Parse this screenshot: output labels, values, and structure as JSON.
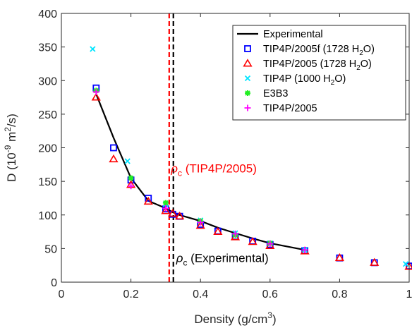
{
  "chart_data": {
    "type": "scatter",
    "xlabel": "Density (g/cm3)",
    "ylabel": "D (10-9 m2/s)",
    "xlim": [
      0,
      1
    ],
    "ylim": [
      0,
      400
    ],
    "xticks": [
      0,
      0.2,
      0.4,
      0.6,
      0.8,
      1
    ],
    "yticks": [
      0,
      50,
      100,
      150,
      200,
      250,
      300,
      350,
      400
    ],
    "xtick_labels": [
      "0",
      "0.2",
      "0.4",
      "0.6",
      "0.8",
      "1"
    ],
    "ytick_labels": [
      "0",
      "50",
      "100",
      "150",
      "200",
      "250",
      "300",
      "350",
      "400"
    ],
    "grid": false,
    "legend_position": "top-right",
    "series": [
      {
        "name": "Experimental",
        "kind": "line",
        "color": "#000000",
        "x": [
          0.1,
          0.15,
          0.2,
          0.25,
          0.3,
          0.32,
          0.34,
          0.4,
          0.45,
          0.5,
          0.55,
          0.6,
          0.7
        ],
        "y": [
          280,
          215,
          155,
          121,
          110,
          104,
          100,
          91,
          81,
          73,
          65,
          58,
          48
        ]
      },
      {
        "name": "TIP4P/2005f (1728 H2O)",
        "marker": "square",
        "color": "#0000ff",
        "x": [
          0.1,
          0.15,
          0.2,
          0.25,
          0.3,
          0.32,
          0.34,
          0.4,
          0.45,
          0.5,
          0.55,
          0.6,
          0.7,
          0.8,
          0.9,
          1.0
        ],
        "y": [
          289,
          200,
          152,
          125,
          109,
          101,
          98,
          86,
          76,
          68,
          61,
          56,
          47,
          36,
          29,
          24
        ]
      },
      {
        "name": "TIP4P/2005  (1728 H2O)",
        "marker": "triangle",
        "color": "#ff0000",
        "x": [
          0.1,
          0.15,
          0.2,
          0.25,
          0.3,
          0.32,
          0.34,
          0.4,
          0.45,
          0.5,
          0.55,
          0.6,
          0.7,
          0.8,
          0.9,
          1.0
        ],
        "y": [
          275,
          183,
          145,
          120,
          106,
          102,
          98,
          84,
          75,
          67,
          60,
          54,
          46,
          36,
          29,
          23
        ]
      },
      {
        "name": "TIP4P (1000 H2O)",
        "marker": "x",
        "color": "#00e5ff",
        "x": [
          0.09,
          0.19,
          0.3,
          0.4,
          0.5,
          0.6,
          0.7,
          0.99
        ],
        "y": [
          347,
          180,
          116,
          92,
          73,
          58,
          48,
          27
        ]
      },
      {
        "name": "E3B3",
        "marker": "asterisk",
        "color": "#22ee22",
        "x": [
          0.1,
          0.2,
          0.3,
          0.4,
          0.5,
          0.6
        ],
        "y": [
          285,
          155,
          118,
          91,
          70,
          58
        ]
      },
      {
        "name": "TIP4P/2005",
        "marker": "plus",
        "color": "#ff00ff",
        "x": [
          0.1,
          0.2,
          0.3,
          0.4,
          0.5,
          0.6,
          0.7
        ],
        "y": [
          283,
          143,
          110,
          89,
          72,
          57,
          48
        ]
      }
    ],
    "vlines": [
      {
        "x": 0.31,
        "color": "#ff0000",
        "style": "dashed"
      },
      {
        "x": 0.322,
        "color": "#000000",
        "style": "dashed"
      }
    ],
    "annotations": [
      {
        "symbol": "ρ",
        "subscript": "c",
        "text": " (TIP4P/2005)",
        "color": "#ff0000",
        "x": 0.315,
        "y": 163
      },
      {
        "symbol": "ρ",
        "subscript": "c",
        "text": " (Experimental)",
        "color": "#000000",
        "x": 0.33,
        "y": 30
      }
    ]
  }
}
